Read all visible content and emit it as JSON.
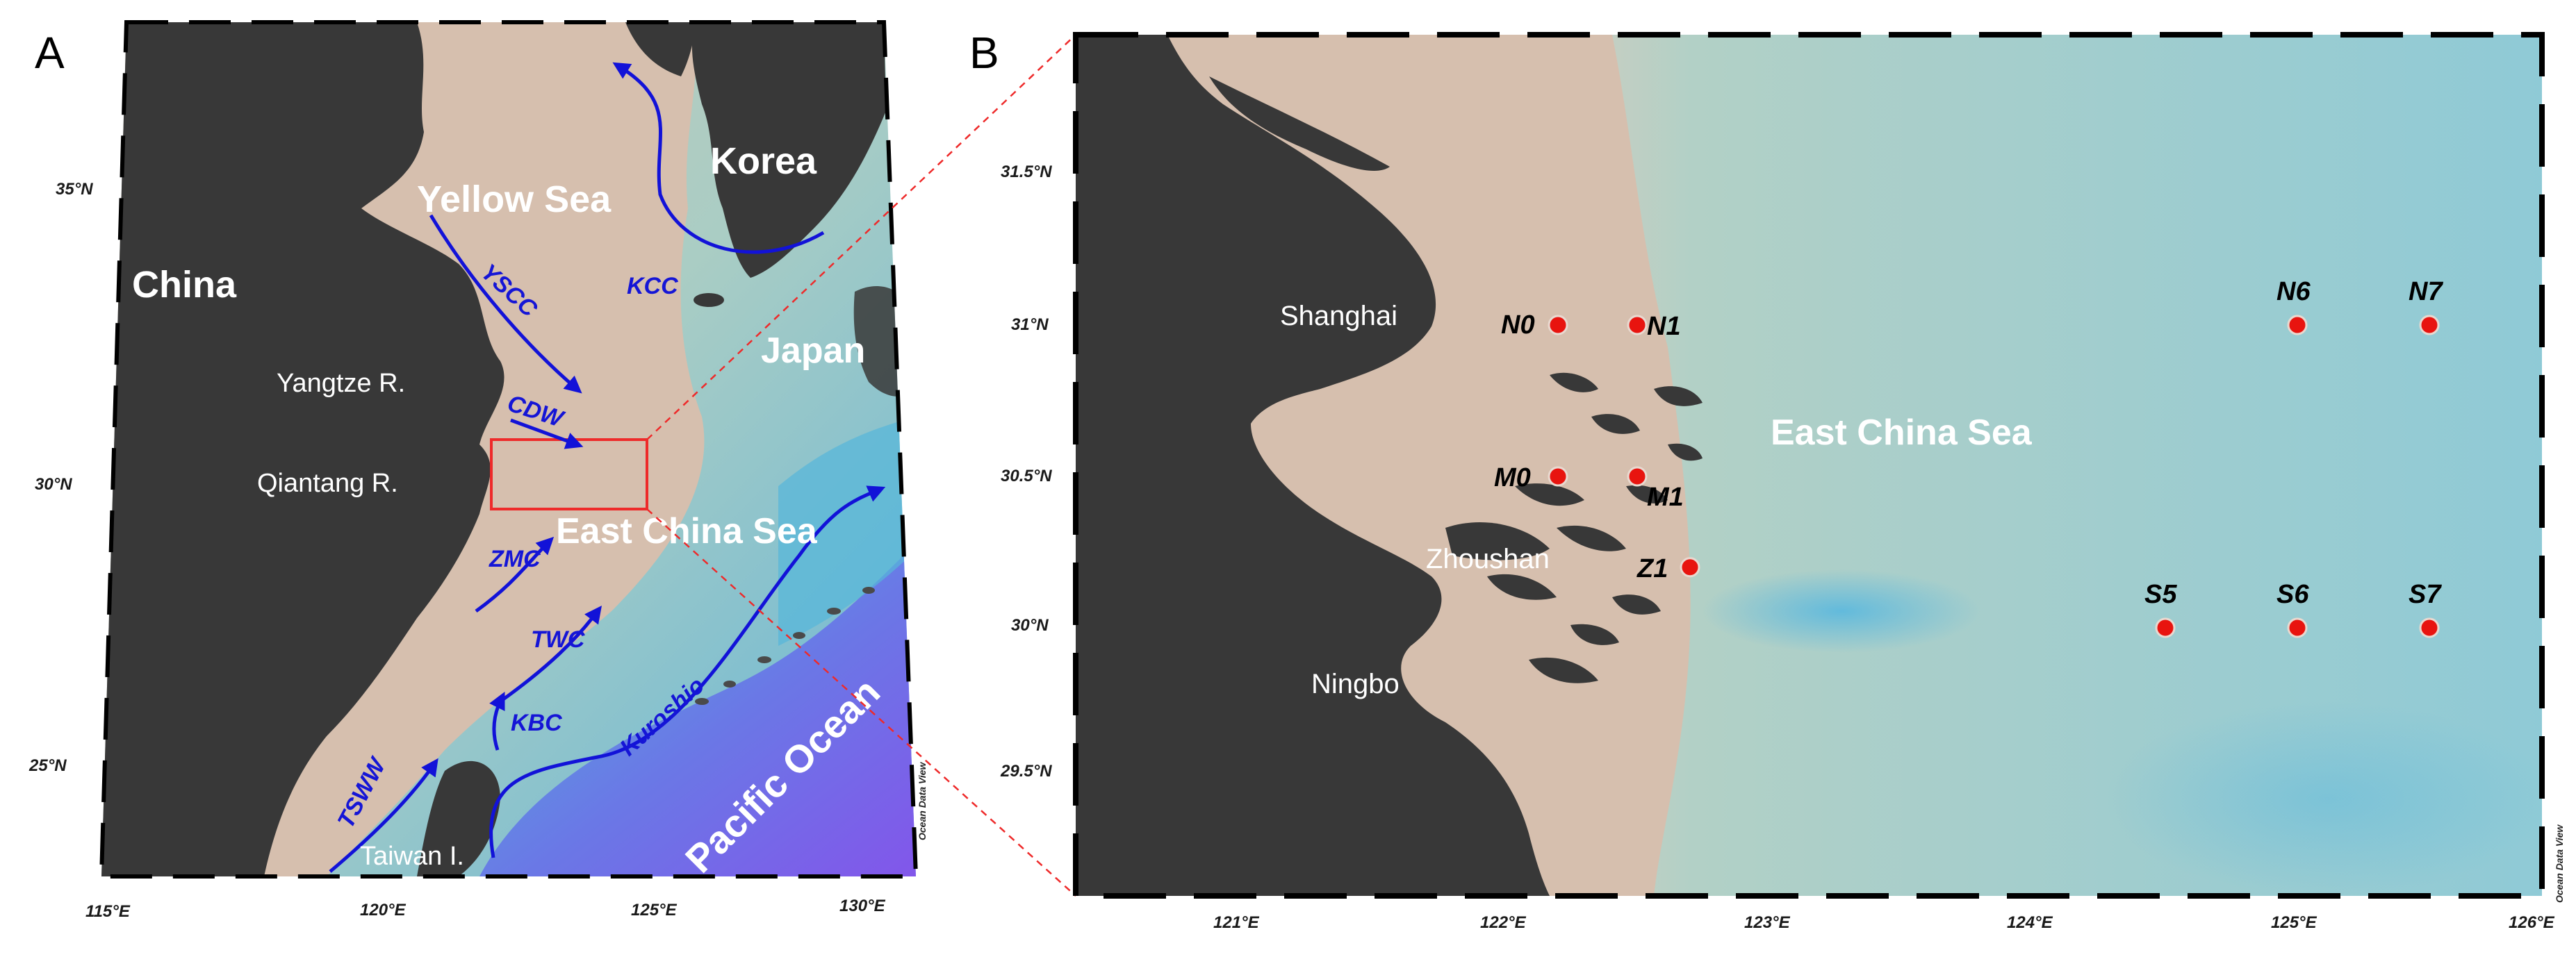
{
  "panels": {
    "a": {
      "letter": "A",
      "lat_ticks": [
        "35°N",
        "30°N",
        "25°N"
      ],
      "lon_ticks": [
        "115°E",
        "120°E",
        "125°E",
        "130°E"
      ],
      "regions": {
        "china": "China",
        "korea": "Korea",
        "japan": "Japan",
        "yellow_sea": "Yellow Sea",
        "east_china_sea": "East China Sea",
        "pacific_ocean": "Pacific Ocean",
        "yangtze": "Yangtze R.",
        "qiantang": "Qiantang R.",
        "taiwan": "Taiwan I."
      },
      "currents": {
        "yscc": "YSCC",
        "kcc": "KCC",
        "cdw": "CDW",
        "zmc": "ZMC",
        "twc": "TWC",
        "kbc": "KBC",
        "tsww": "TSWW",
        "kuroshio": "Kuroshio"
      },
      "credit": "Ocean Data View"
    },
    "b": {
      "letter": "B",
      "lat_ticks": [
        "31.5°N",
        "31°N",
        "30.5°N",
        "30°N",
        "29.5°N"
      ],
      "lon_ticks": [
        "121°E",
        "122°E",
        "123°E",
        "124°E",
        "125°E",
        "126°E"
      ],
      "places": {
        "shanghai": "Shanghai",
        "zhoushan": "Zhoushan",
        "ningbo": "Ningbo",
        "east_china_sea": "East China Sea"
      },
      "stations": [
        {
          "id": "N0",
          "lon": 122.2,
          "lat": 31.0
        },
        {
          "id": "N1",
          "lon": 122.5,
          "lat": 31.0
        },
        {
          "id": "M0",
          "lon": 122.2,
          "lat": 30.5
        },
        {
          "id": "M1",
          "lon": 122.5,
          "lat": 30.5
        },
        {
          "id": "Z1",
          "lon": 122.7,
          "lat": 30.2
        },
        {
          "id": "N6",
          "lon": 125.0,
          "lat": 31.0
        },
        {
          "id": "N7",
          "lon": 125.5,
          "lat": 31.0
        },
        {
          "id": "S5",
          "lon": 124.5,
          "lat": 30.0
        },
        {
          "id": "S6",
          "lon": 125.0,
          "lat": 30.0
        },
        {
          "id": "S7",
          "lon": 125.5,
          "lat": 30.0
        }
      ],
      "station_color": "#e8140f",
      "credit": "Ocean Data View"
    }
  },
  "colors": {
    "land": "#3a3a3a",
    "shelf": "#d8bfae",
    "sea": "#a8ccc4",
    "deep": "#6ec1d6",
    "abyss": "#7a5ce8",
    "current": "#1212d8",
    "box": "#ee2a2a"
  }
}
